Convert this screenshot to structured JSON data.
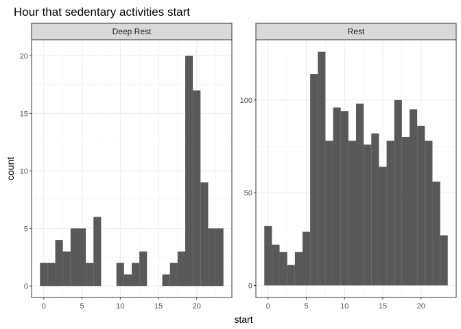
{
  "chart_data": {
    "type": "bar",
    "title": "Hour that sedentary activities start",
    "xlabel": "start",
    "ylabel": "count",
    "bar_color": "#595959",
    "strip_color": "#d9d9d9",
    "grid": true,
    "panels": [
      {
        "label": "Deep Rest",
        "x": [
          0,
          1,
          2,
          3,
          4,
          5,
          6,
          7,
          8,
          9,
          10,
          11,
          12,
          13,
          14,
          15,
          16,
          17,
          18,
          19,
          20,
          21,
          22,
          23
        ],
        "values": [
          2,
          2,
          4,
          3,
          5,
          5,
          2,
          6,
          0,
          0,
          2,
          1,
          2,
          3,
          0,
          0,
          1,
          2,
          3,
          20,
          17,
          9,
          5,
          5
        ],
        "xlim": [
          -1.6,
          24.6
        ],
        "ylim": [
          -1,
          21.4
        ],
        "xticks": [
          0,
          5,
          10,
          15,
          20
        ],
        "yticks": [
          0,
          5,
          10,
          15,
          20
        ]
      },
      {
        "label": "Rest",
        "x": [
          0,
          1,
          2,
          3,
          4,
          5,
          6,
          7,
          8,
          9,
          10,
          11,
          12,
          13,
          14,
          15,
          16,
          17,
          18,
          19,
          20,
          21,
          22,
          23
        ],
        "values": [
          32,
          22,
          18,
          11,
          18,
          29,
          114,
          126,
          78,
          96,
          94,
          78,
          98,
          76,
          82,
          64,
          78,
          100,
          80,
          95,
          86,
          78,
          56,
          27
        ],
        "xlim": [
          -1.6,
          24.6
        ],
        "ylim": [
          -6.5,
          132.5
        ],
        "xticks": [
          0,
          5,
          10,
          15,
          20
        ],
        "yticks": [
          0,
          50,
          100
        ]
      }
    ]
  }
}
